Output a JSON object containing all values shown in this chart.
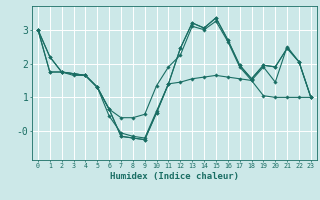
{
  "background_color": "#cce8e8",
  "grid_color": "#ffffff",
  "line_color": "#1a6e64",
  "xlabel": "Humidex (Indice chaleur)",
  "xlim": [
    -0.5,
    23.5
  ],
  "ylim": [
    -0.85,
    3.7
  ],
  "yticks": [
    0,
    1,
    2,
    3
  ],
  "ytick_labels": [
    "-0",
    "1",
    "2",
    "3"
  ],
  "xticks": [
    0,
    1,
    2,
    3,
    4,
    5,
    6,
    7,
    8,
    9,
    10,
    11,
    12,
    13,
    14,
    15,
    16,
    17,
    18,
    19,
    20,
    21,
    22,
    23
  ],
  "series": [
    [
      3.0,
      2.2,
      1.75,
      1.7,
      1.65,
      1.3,
      0.65,
      0.4,
      0.4,
      0.5,
      1.35,
      1.9,
      2.25,
      3.1,
      3.0,
      3.25,
      2.65,
      1.9,
      1.5,
      1.9,
      1.45,
      2.5,
      2.05,
      1.0
    ],
    [
      3.0,
      2.2,
      1.75,
      1.7,
      1.65,
      1.3,
      0.45,
      -0.05,
      -0.15,
      -0.2,
      0.6,
      1.4,
      2.45,
      3.2,
      3.05,
      3.35,
      2.7,
      1.95,
      1.55,
      1.95,
      1.9,
      2.45,
      2.05,
      1.0
    ],
    [
      3.0,
      1.75,
      1.75,
      1.7,
      1.65,
      1.3,
      0.65,
      -0.15,
      -0.2,
      -0.25,
      0.55,
      1.4,
      2.45,
      3.2,
      3.05,
      3.35,
      2.7,
      1.95,
      1.55,
      1.95,
      1.9,
      2.45,
      2.05,
      1.0
    ],
    [
      3.0,
      1.75,
      1.75,
      1.65,
      1.65,
      1.3,
      0.65,
      -0.15,
      -0.2,
      -0.25,
      0.55,
      1.4,
      1.45,
      1.55,
      1.6,
      1.65,
      1.6,
      1.55,
      1.5,
      1.05,
      1.0,
      1.0,
      1.0,
      1.0
    ]
  ],
  "xlabel_fontsize": 6.5,
  "ylabel_fontsize": 7,
  "xtick_fontsize": 4.8,
  "ytick_fontsize": 7
}
